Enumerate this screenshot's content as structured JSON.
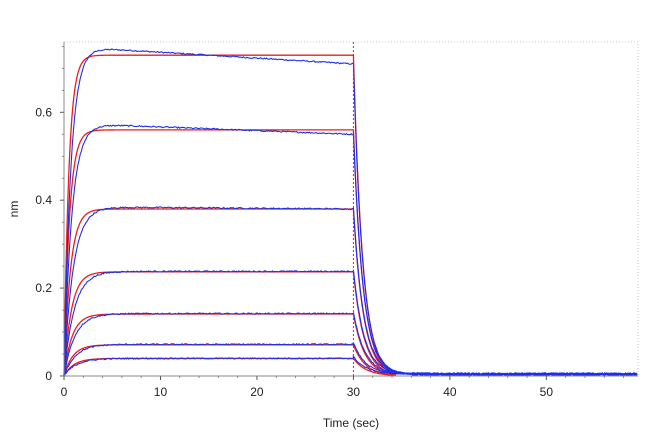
{
  "chart_data": {
    "type": "line",
    "title": "",
    "xlabel": "Time (sec)",
    "ylabel": "nm",
    "xlim": [
      0,
      59.5
    ],
    "ylim": [
      0,
      0.76
    ],
    "xticks": [
      0,
      10,
      20,
      30,
      40,
      50
    ],
    "yticks": [
      0,
      0.2,
      0.4,
      0.6
    ],
    "xtick_labels": [
      "0",
      "10",
      "20",
      "30",
      "40",
      "50"
    ],
    "ytick_labels": [
      "0",
      "0.2",
      "0.4",
      "0.6"
    ],
    "grid": false,
    "legend": "none",
    "association_end": 30,
    "colors": {
      "measured": "#1f2fe8",
      "fit": "#ee1c1c",
      "marker": "#ee1c1c",
      "axis": "#888888"
    },
    "measured_curves": [
      {
        "plateau": 0.75,
        "assoc_rate": 1.4,
        "assoc_drift": -0.04,
        "dissoc_rate": 1.05
      },
      {
        "plateau": 0.575,
        "assoc_rate": 1.25,
        "assoc_drift": -0.025,
        "dissoc_rate": 1.0
      },
      {
        "plateau": 0.385,
        "assoc_rate": 1.05,
        "assoc_drift": -0.005,
        "dissoc_rate": 0.95
      },
      {
        "plateau": 0.238,
        "assoc_rate": 0.95,
        "assoc_drift": 0.0,
        "dissoc_rate": 0.9
      },
      {
        "plateau": 0.142,
        "assoc_rate": 0.9,
        "assoc_drift": 0.0,
        "dissoc_rate": 0.85
      },
      {
        "plateau": 0.072,
        "assoc_rate": 0.85,
        "assoc_drift": 0.0,
        "dissoc_rate": 0.8
      },
      {
        "plateau": 0.04,
        "assoc_rate": 0.8,
        "assoc_drift": 0.0,
        "dissoc_rate": 0.75
      }
    ],
    "fit_curves": [
      {
        "plateau": 0.73,
        "assoc_rate": 2.0,
        "dissoc_rate": 1.05
      },
      {
        "plateau": 0.56,
        "assoc_rate": 1.8,
        "dissoc_rate": 1.0
      },
      {
        "plateau": 0.38,
        "assoc_rate": 1.5,
        "dissoc_rate": 0.95
      },
      {
        "plateau": 0.237,
        "assoc_rate": 1.3,
        "dissoc_rate": 0.9
      },
      {
        "plateau": 0.141,
        "assoc_rate": 1.2,
        "dissoc_rate": 0.85
      },
      {
        "plateau": 0.071,
        "assoc_rate": 1.1,
        "dissoc_rate": 0.8
      },
      {
        "plateau": 0.04,
        "assoc_rate": 1.0,
        "dissoc_rate": 0.75
      }
    ],
    "baseline_noise": 0.006,
    "x_end": 59.5
  }
}
